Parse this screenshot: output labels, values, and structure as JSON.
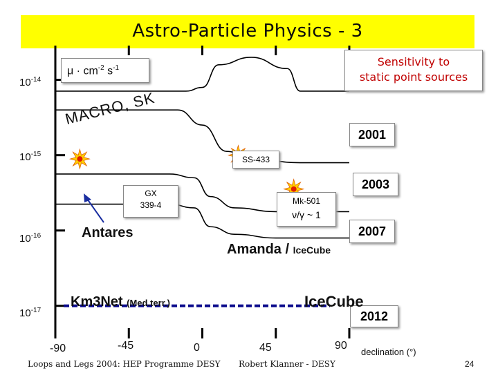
{
  "slide": {
    "title": "Astro-Particle Physics - 3",
    "page_number": "24",
    "footer_left": "Loops and Legs 2004: HEP Programme DESY",
    "footer_center": "Robert Klanner - DESY"
  },
  "chart_data": {
    "type": "line",
    "title": "",
    "ylabel": "μ · cm⁻² s⁻¹",
    "ylabel_parts": {
      "base": "μ · cm",
      "exp1": "-2",
      "mid": " s",
      "exp2": "-1"
    },
    "xlabel": "declination (°)",
    "x_ticks": [
      "-90",
      "-45",
      "0",
      "45",
      "90"
    ],
    "y_ticks": [
      {
        "base": "10",
        "exp": "-14"
      },
      {
        "base": "10",
        "exp": "-15"
      },
      {
        "base": "10",
        "exp": "-16"
      },
      {
        "base": "10",
        "exp": "-17"
      }
    ],
    "xlim": [
      -90,
      90
    ],
    "ylog_range": [
      -17.25,
      -13.6
    ],
    "series": [
      {
        "name": "MACRO, SK",
        "color": "#000000",
        "points": [
          [
            -90,
            -14.15
          ],
          [
            -10,
            -14.15
          ],
          [
            0,
            -14.1
          ],
          [
            10,
            -13.8
          ],
          [
            30,
            -13.7
          ],
          [
            52,
            -13.85
          ],
          [
            60,
            -14.15
          ],
          [
            90,
            -14.15
          ]
        ]
      },
      {
        "name": "2001",
        "color": "#000000",
        "points": [
          [
            -90,
            -14.4
          ],
          [
            -15,
            -14.4
          ],
          [
            0,
            -14.6
          ],
          [
            15,
            -14.95
          ],
          [
            30,
            -15.05
          ],
          [
            60,
            -15.1
          ],
          [
            90,
            -15.1
          ]
        ]
      },
      {
        "name": "2003",
        "color": "#000000",
        "points": [
          [
            -90,
            -15.25
          ],
          [
            -20,
            -15.25
          ],
          [
            -5,
            -15.3
          ],
          [
            5,
            -15.55
          ],
          [
            20,
            -15.7
          ],
          [
            45,
            -15.75
          ],
          [
            90,
            -15.75
          ]
        ]
      },
      {
        "name": "2007",
        "color": "#000000",
        "points": [
          [
            -90,
            -15.65
          ],
          [
            -20,
            -15.65
          ],
          [
            -5,
            -15.7
          ],
          [
            5,
            -15.95
          ],
          [
            20,
            -16.05
          ],
          [
            45,
            -16.1
          ],
          [
            90,
            -16.1
          ]
        ]
      }
    ],
    "dashed_series": {
      "name": "Km3Net / IceCube 2012",
      "y": -17.0,
      "color": "#0a0a8c"
    },
    "sources": [
      {
        "name": "SS-433",
        "x": 22,
        "y": -15.0
      },
      {
        "name": "GX 339-4",
        "x": -75,
        "y": -15.05
      },
      {
        "name": "Mk-501",
        "x": 56,
        "y": -15.45
      }
    ],
    "annotations": {
      "sensitivity": [
        "Sensitivity to",
        "static point sources"
      ],
      "macro": "MACRO, SK",
      "y2001": "2001",
      "ss433": "SS-433",
      "y2003": "2003",
      "gx_line1": "GX",
      "gx_line2": "339-4",
      "mk_line1": "Mk-501",
      "mk_line2": "ν/γ ~ 1",
      "y2007": "2007",
      "antares": "Antares",
      "amanda_a": "Amanda / ",
      "amanda_b": "IceCube",
      "km3net": "Km3Net",
      "km3net_sub": "(Med.terr.)",
      "icecube": "IceCube",
      "y2012": "2012"
    }
  }
}
